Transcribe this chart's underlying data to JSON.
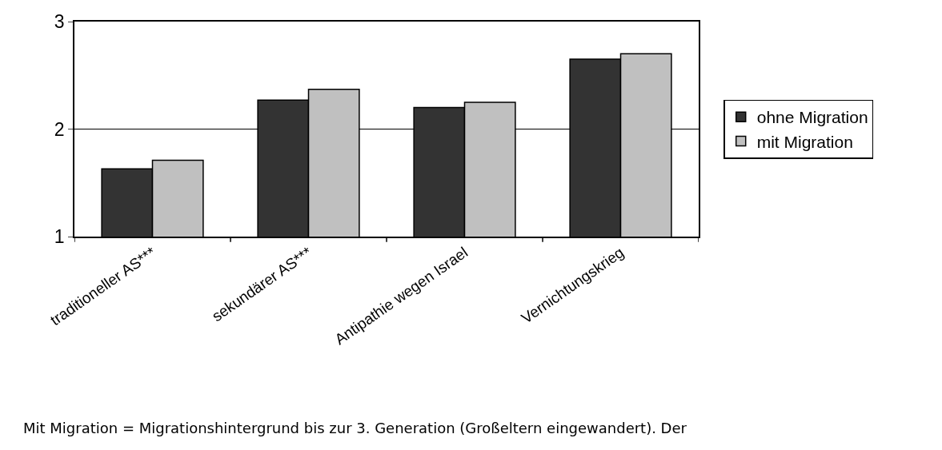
{
  "chart_data": {
    "type": "bar",
    "categories": [
      "traditioneller AS***",
      "sekundärer AS***",
      "Antipathie wegen Israel",
      "Vernichtungskrieg"
    ],
    "series": [
      {
        "name": "ohne Migration",
        "color": "#333333",
        "values": [
          1.63,
          2.27,
          2.2,
          2.65
        ]
      },
      {
        "name": "mit Migration",
        "color": "#c0c0c0",
        "values": [
          1.71,
          2.37,
          2.25,
          2.7
        ]
      }
    ],
    "ylim": [
      1,
      3
    ],
    "yticks": [
      1,
      2,
      3
    ],
    "grid": "y",
    "legend": "right",
    "annotations": [
      "Mit Migration = Migrationshintergrund bis zur 3. Generation (Großeltern eingewandert). Der"
    ]
  }
}
